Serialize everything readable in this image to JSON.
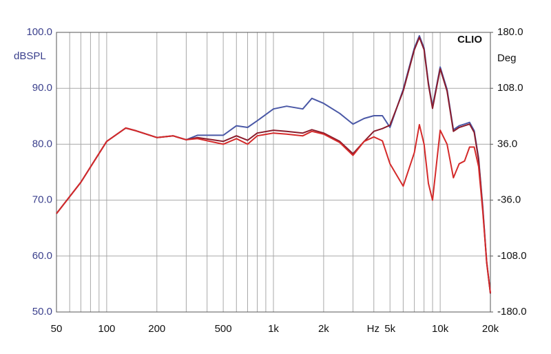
{
  "chart_data": {
    "type": "line",
    "annotation": "CLIO",
    "x_label": "Hz",
    "y_label": "dBSPL",
    "y2_label": "Deg",
    "x_scale": "log",
    "grid": true,
    "xlim": [
      50,
      20000
    ],
    "xticks": [
      50,
      100,
      200,
      500,
      {
        "value": 1000,
        "label": "1k"
      },
      {
        "value": 2000,
        "label": "2k"
      },
      {
        "value": 5000,
        "label": "5k"
      },
      {
        "value": 10000,
        "label": "10k"
      },
      {
        "value": 20000,
        "label": "20k"
      }
    ],
    "x_minor_grid": [
      60,
      70,
      80,
      90,
      300,
      400,
      600,
      700,
      800,
      900,
      3000,
      4000,
      6000,
      7000,
      8000,
      9000
    ],
    "ylim": [
      50,
      100
    ],
    "yticks": [
      {
        "value": 50,
        "label": "50.0"
      },
      {
        "value": 60,
        "label": "60.0"
      },
      {
        "value": 70,
        "label": "70.0"
      },
      {
        "value": 80,
        "label": "80.0"
      },
      {
        "value": 90,
        "label": "90.0"
      },
      {
        "value": 100,
        "label": "100.0"
      }
    ],
    "y2lim": [
      -180,
      180
    ],
    "y2ticks": [
      {
        "value": -180,
        "label": "-180.0"
      },
      {
        "value": -108,
        "label": "-108.0"
      },
      {
        "value": -36,
        "label": "-36.0"
      },
      {
        "value": 36,
        "label": "36.0"
      },
      {
        "value": 108,
        "label": "108.0"
      },
      {
        "value": 180,
        "label": "180.0"
      }
    ],
    "x": [
      50,
      70,
      100,
      130,
      150,
      200,
      250,
      300,
      350,
      500,
      600,
      700,
      800,
      1000,
      1200,
      1500,
      1700,
      2000,
      2500,
      3000,
      3500,
      4000,
      4500,
      5000,
      6000,
      7000,
      7500,
      8000,
      8500,
      9000,
      10000,
      11000,
      12000,
      13000,
      14000,
      15000,
      16000,
      17000,
      18000,
      19000,
      20000
    ],
    "series": [
      {
        "color": "#4a58a6",
        "values": [
          67.6,
          73.2,
          80.5,
          82.9,
          82.4,
          81.2,
          81.5,
          80.8,
          81.6,
          81.6,
          83.3,
          83.0,
          84.2,
          86.3,
          86.8,
          86.3,
          88.2,
          87.3,
          85.5,
          83.6,
          84.6,
          85.1,
          85.1,
          83.0,
          89.8,
          97.2,
          99.4,
          97.2,
          91.0,
          86.7,
          93.8,
          89.8,
          82.6,
          83.3,
          83.6,
          83.9,
          82.4,
          77.5,
          68.8,
          59.0,
          53.4
        ]
      },
      {
        "color": "#8a1c2c",
        "values": [
          67.6,
          73.2,
          80.5,
          82.9,
          82.4,
          81.2,
          81.5,
          80.8,
          81.2,
          80.5,
          81.5,
          80.7,
          82.0,
          82.5,
          82.3,
          82.0,
          82.6,
          82.0,
          80.5,
          78.3,
          80.5,
          82.3,
          82.8,
          83.4,
          89.5,
          96.9,
          99.1,
          96.9,
          90.7,
          86.4,
          93.5,
          89.5,
          82.3,
          83.0,
          83.3,
          83.6,
          82.1,
          77.2,
          68.5,
          58.8,
          53.3
        ]
      },
      {
        "color": "#d42a2a",
        "values": [
          67.6,
          73.2,
          80.5,
          82.9,
          82.4,
          81.2,
          81.5,
          80.8,
          81.0,
          80.0,
          81.0,
          80.0,
          81.5,
          82.0,
          81.8,
          81.5,
          82.3,
          81.8,
          80.3,
          78.0,
          80.5,
          81.3,
          80.6,
          76.5,
          72.5,
          78.5,
          83.5,
          80.0,
          73.0,
          70.0,
          82.5,
          80.0,
          74.0,
          76.5,
          77.0,
          79.5,
          79.5,
          76.0,
          68.0,
          59.0,
          53.4
        ]
      }
    ]
  }
}
